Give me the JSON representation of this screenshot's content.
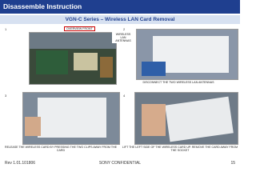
{
  "header": {
    "title": "Disassemble Instruction",
    "subtitle": "VGN-C Series – Wireless LAN Card Removal"
  },
  "panels": [
    {
      "number": "1",
      "label": "OVERVIEW FRONT"
    },
    {
      "number": "2",
      "label": "WIRELESS LAN ANTENNAS",
      "caption": "DISCONNECT THE TWO WIRELESS LAN ANTENNAS"
    },
    {
      "number": "3",
      "caption": "RELEASE THE WIRELESS CARD BY PRESSING THE TWO CLIPS AWAY FROM THE CARD"
    },
    {
      "number": "4",
      "caption": "LIFT THE LEFT SIDE OF THE WIRELESS CARD UP. REMOVE THE CARD AWAY FROM THE SOCKET"
    }
  ],
  "footer": {
    "revision": "Rev 1.01.101806",
    "confidential": "SONY CONFIDENTIAL",
    "page": "15"
  }
}
